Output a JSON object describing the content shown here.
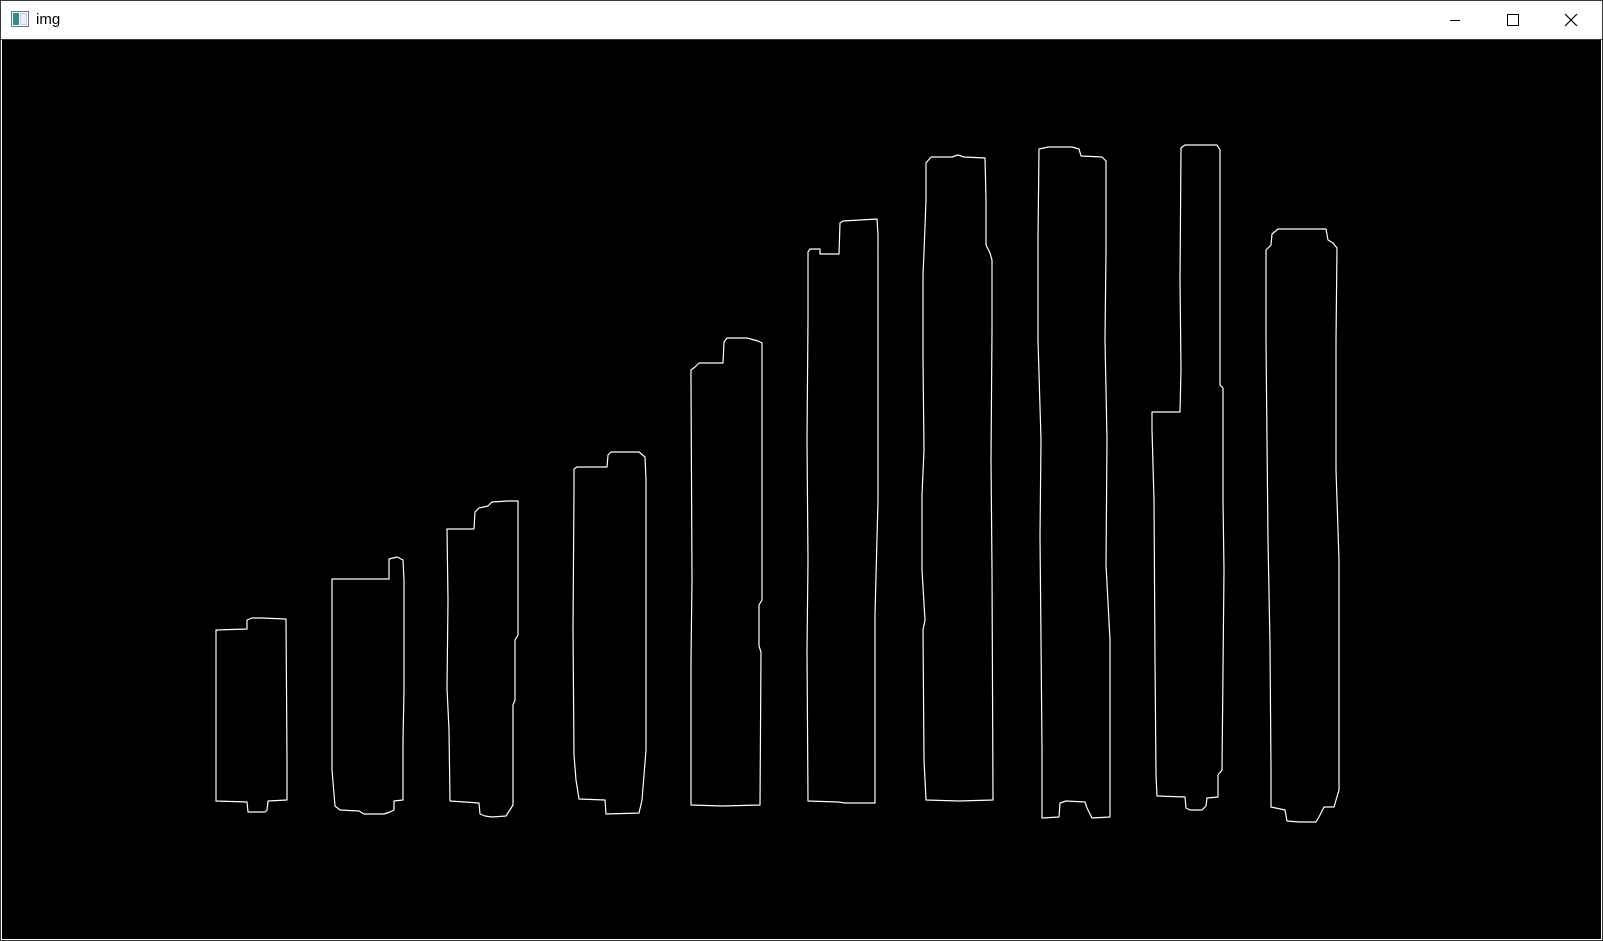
{
  "window": {
    "title": "img",
    "controls": {
      "minimize": "minimize-icon",
      "maximize": "maximize-icon",
      "close": "close-icon"
    }
  },
  "canvas": {
    "background": "#000000",
    "stroke": "#ffffff",
    "contour_count": 10
  }
}
